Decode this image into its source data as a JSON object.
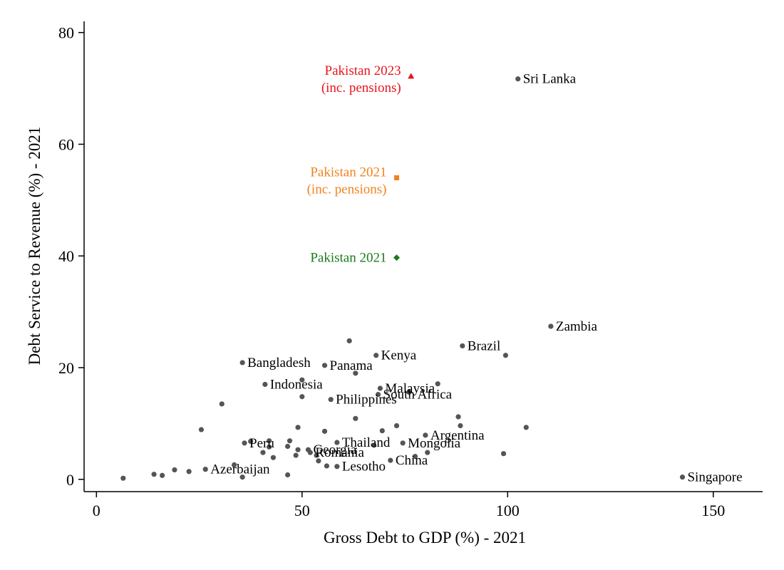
{
  "chart_data": {
    "type": "scatter",
    "xlabel": "Gross Debt to GDP (%) - 2021",
    "ylabel": "Debt Service to Revenue (%) - 2021",
    "xlim": [
      -3,
      162
    ],
    "ylim": [
      -2.2,
      82
    ],
    "xticks": [
      0,
      50,
      100,
      150
    ],
    "yticks": [
      0,
      20,
      40,
      60,
      80
    ],
    "grid": false,
    "colors": {
      "points": "#555555",
      "axis": "#000000",
      "pk2023": "#e8141c",
      "pk2021_pensions": "#f0821e",
      "pk2021": "#1a7a1a"
    },
    "points": [
      {
        "x": 6.5,
        "y": 0.2,
        "label": ""
      },
      {
        "x": 14,
        "y": 0.9,
        "label": ""
      },
      {
        "x": 16,
        "y": 0.7,
        "label": ""
      },
      {
        "x": 19,
        "y": 1.7,
        "label": ""
      },
      {
        "x": 22.5,
        "y": 1.4,
        "label": ""
      },
      {
        "x": 25.5,
        "y": 8.9,
        "label": ""
      },
      {
        "x": 26.5,
        "y": 1.8,
        "label": "Azerbaijan"
      },
      {
        "x": 30.5,
        "y": 13.5,
        "label": ""
      },
      {
        "x": 33.5,
        "y": 2.6,
        "label": ""
      },
      {
        "x": 35.5,
        "y": 0.4,
        "label": ""
      },
      {
        "x": 35.5,
        "y": 20.9,
        "label": "Bangladesh"
      },
      {
        "x": 36,
        "y": 6.5,
        "label": "Peru"
      },
      {
        "x": 37.5,
        "y": 6.8,
        "label": ""
      },
      {
        "x": 40.5,
        "y": 4.8,
        "label": ""
      },
      {
        "x": 41,
        "y": 17,
        "label": "Indonesia"
      },
      {
        "x": 42,
        "y": 6.9,
        "label": ""
      },
      {
        "x": 42,
        "y": 5.8,
        "label": ""
      },
      {
        "x": 43,
        "y": 3.9,
        "label": ""
      },
      {
        "x": 46.5,
        "y": 0.8,
        "label": ""
      },
      {
        "x": 46.5,
        "y": 5.9,
        "label": ""
      },
      {
        "x": 47,
        "y": 6.9,
        "label": ""
      },
      {
        "x": 48.5,
        "y": 4.3,
        "label": ""
      },
      {
        "x": 49,
        "y": 9.3,
        "label": ""
      },
      {
        "x": 49,
        "y": 5.3,
        "label": ""
      },
      {
        "x": 50,
        "y": 14.8,
        "label": ""
      },
      {
        "x": 50,
        "y": 17.8,
        "label": ""
      },
      {
        "x": 51.5,
        "y": 5.3,
        "label": "Georgia"
      },
      {
        "x": 52,
        "y": 4.8,
        "label": "Romania"
      },
      {
        "x": 53.5,
        "y": 4.3,
        "label": ""
      },
      {
        "x": 54,
        "y": 3.3,
        "label": ""
      },
      {
        "x": 55.5,
        "y": 20.4,
        "label": "Panama"
      },
      {
        "x": 55.5,
        "y": 8.6,
        "label": ""
      },
      {
        "x": 56,
        "y": 2.4,
        "label": ""
      },
      {
        "x": 57,
        "y": 14.3,
        "label": "Philippines"
      },
      {
        "x": 58.5,
        "y": 2.3,
        "label": "Lesotho"
      },
      {
        "x": 58.5,
        "y": 6.6,
        "label": "Thailand"
      },
      {
        "x": 61.5,
        "y": 24.8,
        "label": ""
      },
      {
        "x": 63,
        "y": 19,
        "label": ""
      },
      {
        "x": 63,
        "y": 10.9,
        "label": ""
      },
      {
        "x": 67.5,
        "y": 6.1,
        "label": ""
      },
      {
        "x": 68,
        "y": 22.2,
        "label": "Kenya"
      },
      {
        "x": 68.5,
        "y": 15.2,
        "label": "South Africa"
      },
      {
        "x": 69,
        "y": 16.3,
        "label": "Malaysia"
      },
      {
        "x": 69.5,
        "y": 8.7,
        "label": ""
      },
      {
        "x": 71.5,
        "y": 3.4,
        "label": "China"
      },
      {
        "x": 73,
        "y": 9.6,
        "label": ""
      },
      {
        "x": 74.5,
        "y": 6.5,
        "label": "Mongolia"
      },
      {
        "x": 76,
        "y": 15.6,
        "label": ""
      },
      {
        "x": 77.5,
        "y": 4.1,
        "label": ""
      },
      {
        "x": 80,
        "y": 7.9,
        "label": "Argentina"
      },
      {
        "x": 80.5,
        "y": 4.8,
        "label": ""
      },
      {
        "x": 83,
        "y": 17.1,
        "label": ""
      },
      {
        "x": 88,
        "y": 11.2,
        "label": ""
      },
      {
        "x": 88.5,
        "y": 9.6,
        "label": ""
      },
      {
        "x": 89,
        "y": 23.9,
        "label": "Brazil"
      },
      {
        "x": 99,
        "y": 4.6,
        "label": ""
      },
      {
        "x": 99.5,
        "y": 22.2,
        "label": ""
      },
      {
        "x": 102.5,
        "y": 71.7,
        "label": "Sri Lanka"
      },
      {
        "x": 104.5,
        "y": 9.3,
        "label": ""
      },
      {
        "x": 110.5,
        "y": 27.4,
        "label": "Zambia"
      },
      {
        "x": 142.5,
        "y": 0.4,
        "label": "Singapore"
      }
    ],
    "highlights": [
      {
        "x": 76.5,
        "y": 72.2,
        "marker": "triangle",
        "color": "#e8141c",
        "label_lines": [
          "Pakistan 2023",
          "(inc. pensions)"
        ]
      },
      {
        "x": 73,
        "y": 54,
        "marker": "square",
        "color": "#f0821e",
        "label_lines": [
          "Pakistan 2021",
          "(inc. pensions)"
        ]
      },
      {
        "x": 73,
        "y": 39.7,
        "marker": "diamond",
        "color": "#1a7a1a",
        "label_lines": [
          "Pakistan 2021"
        ]
      }
    ]
  }
}
